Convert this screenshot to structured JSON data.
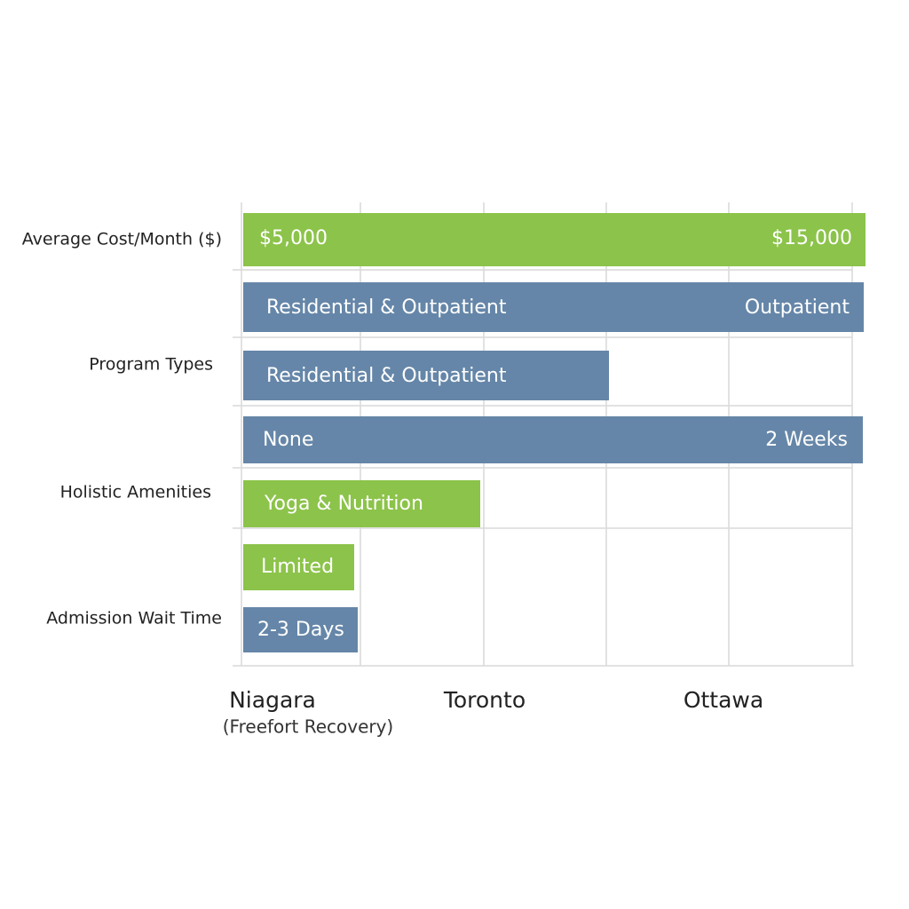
{
  "row_labels": [
    "Average Cost/Month ($)",
    "Program Types",
    "Holistic Amenities",
    "Admission Wait Time"
  ],
  "bars": [
    {
      "left": "$5,000",
      "right": "$15,000"
    },
    {
      "left": "Residential & Outpatient",
      "right": "Outpatient"
    },
    {
      "left": "Residential & Outpatient"
    },
    {
      "left": "None",
      "right": "2 Weeks"
    },
    {
      "left": "Yoga & Nutrition"
    },
    {
      "left": "Limited"
    },
    {
      "left": "2-3 Days"
    }
  ],
  "columns": [
    {
      "name": "Niagara",
      "sub": "(Freefort Recovery)"
    },
    {
      "name": "Toronto"
    },
    {
      "name": "Ottawa"
    }
  ]
}
